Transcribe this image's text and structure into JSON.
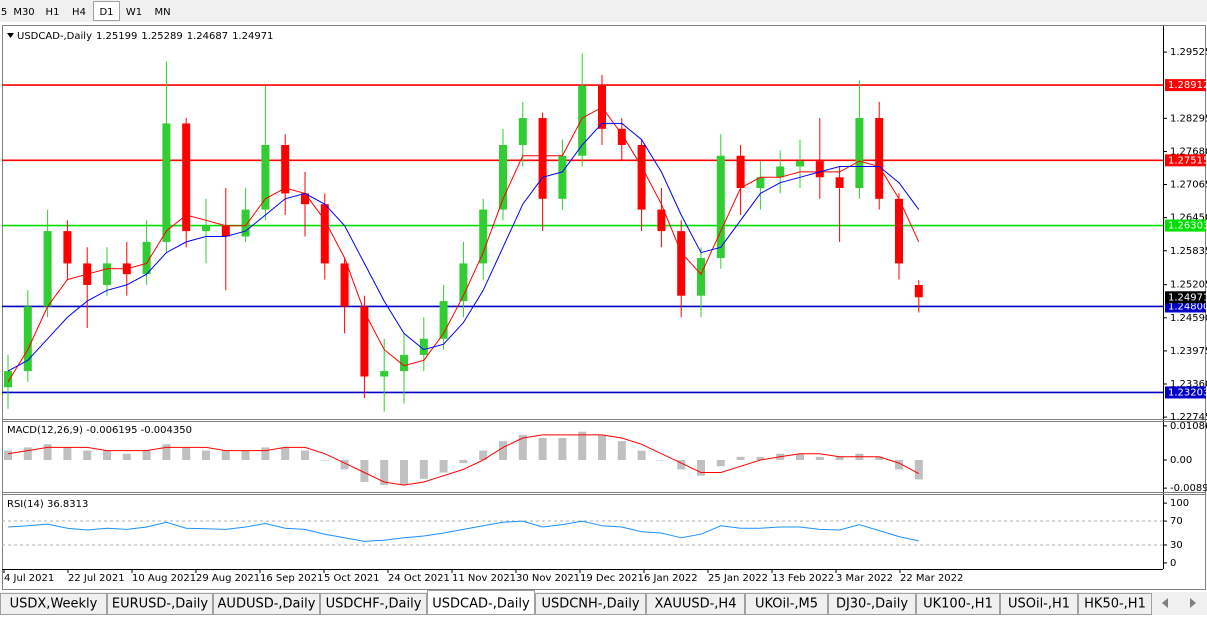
{
  "toolbar": {
    "timeframes": [
      "5",
      "M30",
      "H1",
      "H4",
      "D1",
      "W1",
      "MN"
    ],
    "active_index": 4
  },
  "chart_data": [
    {
      "type": "candlestick",
      "title": "USDCAD-,Daily",
      "open": [
        1.233,
        1.236,
        1.248,
        1.262,
        1.256,
        1.252,
        1.256,
        1.254,
        1.26,
        1.282,
        1.262,
        1.263,
        1.261,
        1.266,
        1.278,
        1.269,
        1.267,
        1.256,
        1.248,
        1.235,
        1.236,
        1.239,
        1.242,
        1.249,
        1.256,
        1.266,
        1.278,
        1.283,
        1.268,
        1.276,
        1.289,
        1.281,
        1.278,
        1.266,
        1.262,
        1.25,
        1.257,
        1.276,
        1.27,
        1.272,
        1.274,
        1.275,
        1.272,
        1.27,
        1.283,
        1.268,
        1.25199
      ],
      "high": [
        1.239,
        1.251,
        1.266,
        1.264,
        1.259,
        1.259,
        1.26,
        1.264,
        1.2935,
        1.283,
        1.268,
        1.27,
        1.27,
        1.289,
        1.28,
        1.273,
        1.269,
        1.257,
        1.25,
        1.242,
        1.243,
        1.246,
        1.252,
        1.26,
        1.268,
        1.281,
        1.286,
        1.284,
        1.279,
        1.295,
        1.291,
        1.283,
        1.279,
        1.27,
        1.264,
        1.259,
        1.28,
        1.278,
        1.275,
        1.277,
        1.279,
        1.283,
        1.274,
        1.29,
        1.286,
        1.269,
        1.25289
      ],
      "low": [
        1.229,
        1.234,
        1.246,
        1.253,
        1.244,
        1.25,
        1.25,
        1.252,
        1.258,
        1.259,
        1.256,
        1.251,
        1.26,
        1.264,
        1.265,
        1.261,
        1.253,
        1.243,
        1.231,
        1.2285,
        1.23,
        1.236,
        1.24,
        1.246,
        1.253,
        1.264,
        1.274,
        1.262,
        1.266,
        1.274,
        1.278,
        1.275,
        1.262,
        1.259,
        1.246,
        1.246,
        1.255,
        1.265,
        1.266,
        1.269,
        1.27,
        1.268,
        1.26,
        1.268,
        1.266,
        1.253,
        1.24687
      ],
      "close": [
        1.236,
        1.248,
        1.262,
        1.256,
        1.252,
        1.256,
        1.254,
        1.26,
        1.282,
        1.262,
        1.263,
        1.261,
        1.266,
        1.278,
        1.269,
        1.267,
        1.256,
        1.248,
        1.235,
        1.236,
        1.239,
        1.242,
        1.249,
        1.256,
        1.266,
        1.278,
        1.283,
        1.268,
        1.276,
        1.289,
        1.281,
        1.278,
        1.266,
        1.262,
        1.25,
        1.257,
        1.276,
        1.27,
        1.272,
        1.274,
        1.275,
        1.272,
        1.27,
        1.283,
        1.268,
        1.256,
        1.24971
      ],
      "up_color": "#32cd32",
      "down_color": "#ff0000",
      "ma": [
        {
          "color": "#ff0000",
          "values": [
            1.234,
            1.24,
            1.248,
            1.253,
            1.254,
            1.255,
            1.255,
            1.256,
            1.262,
            1.265,
            1.264,
            1.263,
            1.263,
            1.268,
            1.27,
            1.269,
            1.264,
            1.257,
            1.247,
            1.24,
            1.237,
            1.238,
            1.243,
            1.25,
            1.258,
            1.268,
            1.276,
            1.276,
            1.276,
            1.283,
            1.285,
            1.28,
            1.274,
            1.267,
            1.258,
            1.254,
            1.262,
            1.27,
            1.272,
            1.272,
            1.273,
            1.273,
            1.273,
            1.275,
            1.274,
            1.268,
            1.26
          ]
        },
        {
          "color": "#0000ff",
          "values": [
            1.236,
            1.238,
            1.242,
            1.246,
            1.249,
            1.251,
            1.252,
            1.254,
            1.258,
            1.26,
            1.261,
            1.261,
            1.262,
            1.265,
            1.268,
            1.269,
            1.267,
            1.263,
            1.256,
            1.249,
            1.243,
            1.24,
            1.241,
            1.245,
            1.251,
            1.259,
            1.267,
            1.272,
            1.273,
            1.278,
            1.282,
            1.282,
            1.279,
            1.273,
            1.265,
            1.258,
            1.259,
            1.264,
            1.269,
            1.271,
            1.272,
            1.273,
            1.274,
            1.274,
            1.274,
            1.271,
            1.266
          ]
        }
      ],
      "levels": [
        {
          "value": 1.28912,
          "color": "#ff0000"
        },
        {
          "value": 1.27515,
          "color": "#ff0000"
        },
        {
          "value": 1.26303,
          "color": "#00e000"
        },
        {
          "value": 1.248,
          "label": "1.24800",
          "color": "#0000c8"
        },
        {
          "value": 1.23203,
          "color": "#0000c8"
        }
      ],
      "ylim": [
        1.2271,
        1.3001
      ],
      "yticks": [
        1.29525,
        1.28295,
        {
          "value": 1.2768,
          "label": "1.27680"
        },
        1.27065,
        {
          "value": 1.2645,
          "label": "1.26450"
        },
        1.25835,
        1.25205,
        {
          "value": 1.2459,
          "label": "1.24590"
        },
        1.23975,
        {
          "value": 1.2336,
          "label": "1.23360"
        },
        1.22745
      ],
      "x_labels": [
        "4 Jul 2021",
        "22 Jul 2021",
        "10 Aug 2021",
        "29 Aug 2021",
        "16 Sep 2021",
        "5 Oct 2021",
        "24 Oct 2021",
        "11 Nov 2021",
        "30 Nov 2021",
        "19 Dec 2021",
        "6 Jan 2022",
        "25 Jan 2022",
        "13 Feb 2022",
        "3 Mar 2022",
        "22 Mar 2022"
      ]
    },
    {
      "type": "macd",
      "title": "MACD(12,26,9) -0.006195 -0.004350",
      "histogram": [
        0.003,
        0.004,
        0.005,
        0.004,
        0.003,
        0.003,
        0.002,
        0.003,
        0.005,
        0.004,
        0.003,
        0.003,
        0.003,
        0.004,
        0.004,
        0.003,
        0.0,
        -0.003,
        -0.007,
        -0.008,
        -0.008,
        -0.006,
        -0.004,
        -0.001,
        0.003,
        0.006,
        0.008,
        0.007,
        0.007,
        0.009,
        0.008,
        0.006,
        0.003,
        0.0,
        -0.003,
        -0.005,
        -0.002,
        0.001,
        0.001,
        0.002,
        0.002,
        0.001,
        0.001,
        0.002,
        0.001,
        -0.003,
        -0.006195
      ],
      "signal": [
        0.002,
        0.003,
        0.004,
        0.004,
        0.004,
        0.003,
        0.003,
        0.003,
        0.004,
        0.004,
        0.004,
        0.003,
        0.003,
        0.003,
        0.004,
        0.004,
        0.002,
        -0.001,
        -0.004,
        -0.007,
        -0.008,
        -0.007,
        -0.005,
        -0.003,
        0.0,
        0.004,
        0.007,
        0.008,
        0.008,
        0.008,
        0.008,
        0.007,
        0.005,
        0.002,
        -0.001,
        -0.004,
        -0.004,
        -0.002,
        0.0,
        0.001,
        0.002,
        0.002,
        0.001,
        0.001,
        0.001,
        -0.001,
        -0.00435
      ],
      "hist_color": "#c0c0c0",
      "signal_color": "#ff0000",
      "ylim": [
        -0.0102,
        0.0121
      ],
      "yticks": [
        0.010869,
        {
          "value": 0,
          "label": "0.00"
        },
        -0.008974
      ]
    },
    {
      "type": "line",
      "title": "RSI(14) 36.8313",
      "values": [
        60,
        62,
        65,
        58,
        55,
        58,
        56,
        60,
        68,
        58,
        57,
        56,
        60,
        66,
        58,
        56,
        48,
        42,
        36,
        38,
        42,
        45,
        50,
        56,
        62,
        68,
        70,
        60,
        64,
        70,
        62,
        60,
        52,
        50,
        42,
        48,
        62,
        58,
        58,
        60,
        60,
        56,
        55,
        64,
        54,
        44,
        36.8313
      ],
      "color": "#1e90ff",
      "ylim": [
        -10.2,
        113.6
      ],
      "yticks": [
        100,
        70,
        30,
        0
      ],
      "dashed_levels": [
        70,
        30
      ]
    }
  ],
  "tabs": {
    "items": [
      "USDX,Weekly",
      "EURUSD-,Daily",
      "AUDUSD-,Daily",
      "USDCHF-,Daily",
      "USDCAD-,Daily",
      "USDCNH-,Daily",
      "XAUUSD-,H4",
      "UKOil-,M5",
      "DJ30-,Daily",
      "UK100-,H1",
      "USOil-,H1",
      "HK50-,H1"
    ],
    "active_index": 4
  }
}
